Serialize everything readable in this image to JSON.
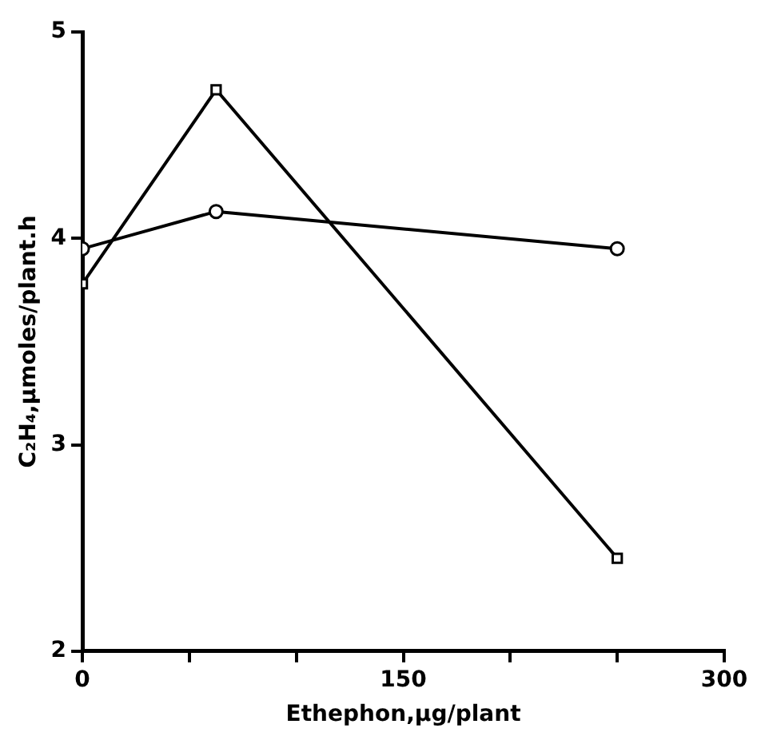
{
  "chart_data": {
    "type": "line",
    "xlabel": "Ethephon,µg/plant",
    "ylabel": "C₂H₄,µmoles/plant.h",
    "x": [
      0,
      62.5,
      250
    ],
    "series": [
      {
        "color": "#000000",
        "marker": "circle",
        "values": [
          3.95,
          4.13,
          3.95
        ]
      },
      {
        "color": "#000000",
        "marker": "square",
        "values": [
          3.78,
          4.72,
          2.45
        ]
      }
    ],
    "xlim": [
      0,
      300
    ],
    "xticks": [
      0,
      {
        "value": 50,
        "label": null
      },
      {
        "value": 100,
        "label": null
      },
      150,
      {
        "value": 200,
        "label": null
      },
      {
        "value": 250,
        "label": null
      },
      300
    ],
    "ylim": [
      2,
      5
    ],
    "yticks": [
      2,
      3,
      4,
      5
    ],
    "grid": false,
    "legend": false,
    "line_style": "solid"
  }
}
